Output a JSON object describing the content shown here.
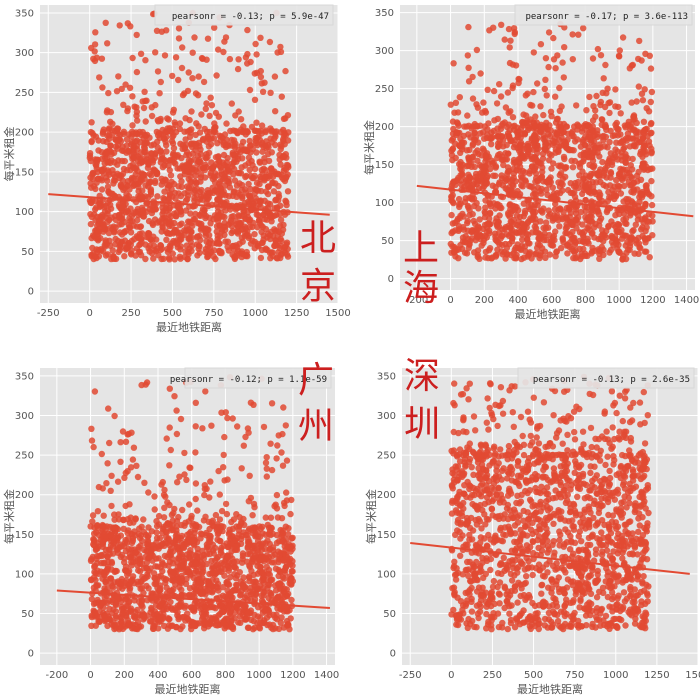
{
  "chart_data": [
    {
      "type": "scatter",
      "city": [
        "北",
        "京"
      ],
      "xlabel": "最近地铁距离",
      "ylabel": "每平米租金",
      "legend": "pearsonr = -0.13; p = 5.9e-47",
      "legend_position": "top-right",
      "xlim": [
        -300,
        1500
      ],
      "ylim": [
        -15,
        360
      ],
      "xticks": [
        -250,
        0,
        250,
        500,
        750,
        1000,
        1250,
        1500
      ],
      "yticks": [
        0,
        50,
        100,
        150,
        200,
        250,
        300,
        350
      ],
      "x_range": [
        0,
        1200
      ],
      "y_core": [
        40,
        200
      ],
      "y_outliers": [
        200,
        350
      ],
      "regression": {
        "x": [
          -250,
          1450
        ],
        "y": [
          122,
          96
        ]
      },
      "grid": true,
      "color": "#e24a33"
    },
    {
      "type": "scatter",
      "city": [
        "上",
        "海"
      ],
      "xlabel": "最近地铁距离",
      "ylabel": "每平米租金",
      "legend": "pearsonr = -0.17; p = 3.6e-113",
      "legend_position": "top-right",
      "xlim": [
        -300,
        1450
      ],
      "ylim": [
        -15,
        360
      ],
      "xticks": [
        -200,
        0,
        200,
        400,
        600,
        800,
        1000,
        1200,
        1400
      ],
      "yticks": [
        0,
        50,
        100,
        150,
        200,
        250,
        300,
        350
      ],
      "x_range": [
        0,
        1200
      ],
      "y_core": [
        25,
        200
      ],
      "y_outliers": [
        200,
        335
      ],
      "regression": {
        "x": [
          -200,
          1440
        ],
        "y": [
          122,
          82
        ]
      },
      "grid": true,
      "color": "#e24a33"
    },
    {
      "type": "scatter",
      "city": [
        "广",
        "州"
      ],
      "xlabel": "最近地铁距离",
      "ylabel": "每平米租金",
      "legend": "pearsonr = -0.12; p = 1.1e-59",
      "legend_position": "top-right",
      "xlim": [
        -300,
        1450
      ],
      "ylim": [
        -15,
        360
      ],
      "xticks": [
        -200,
        0,
        200,
        400,
        600,
        800,
        1000,
        1200,
        1400
      ],
      "yticks": [
        0,
        50,
        100,
        150,
        200,
        250,
        300,
        350
      ],
      "x_range": [
        0,
        1200
      ],
      "y_core": [
        30,
        160
      ],
      "y_outliers": [
        160,
        350
      ],
      "regression": {
        "x": [
          -200,
          1420
        ],
        "y": [
          79,
          57
        ]
      },
      "grid": true,
      "color": "#e24a33"
    },
    {
      "type": "scatter",
      "city": [
        "深",
        "圳"
      ],
      "xlabel": "最近地铁距离",
      "ylabel": "每平米租金",
      "legend": "pearsonr = -0.13; p = 2.6e-35",
      "legend_position": "top-right",
      "xlim": [
        -300,
        1500
      ],
      "ylim": [
        -15,
        360
      ],
      "xticks": [
        -250,
        0,
        250,
        500,
        750,
        1000,
        1250,
        1500
      ],
      "yticks": [
        0,
        50,
        100,
        150,
        200,
        250,
        300,
        350
      ],
      "x_range": [
        0,
        1200
      ],
      "y_core": [
        30,
        250
      ],
      "y_outliers": [
        250,
        350
      ],
      "regression": {
        "x": [
          -250,
          1450
        ],
        "y": [
          139,
          100
        ]
      },
      "grid": true,
      "color": "#e24a33"
    }
  ]
}
